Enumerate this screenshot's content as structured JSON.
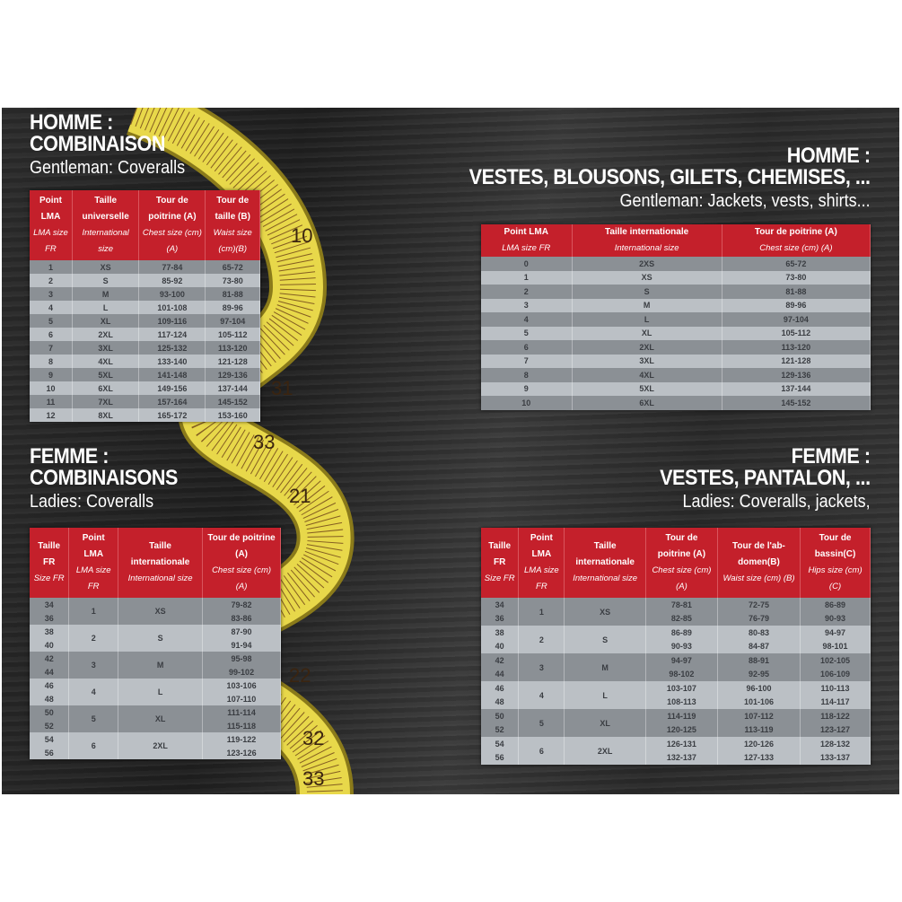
{
  "colors": {
    "header_red": "#c4202b",
    "row_dark": "#8b9095",
    "row_light": "#bbc0c5",
    "background": "#2a2a2a",
    "tape_yellow": "#e8d84a"
  },
  "tape_numbers": [
    "10",
    "31",
    "33",
    "21",
    "22",
    "32",
    "33"
  ],
  "men_coveralls": {
    "title1": "HOMME :",
    "title2": "COMBINAISON",
    "subtitle": "Gentleman: Coveralls",
    "headers": [
      {
        "fr": "Point LMA",
        "en": "LMA size FR"
      },
      {
        "fr": "Taille universelle",
        "en": "International size"
      },
      {
        "fr": "Tour de poitrine (A)",
        "en": "Chest size (cm) (A)"
      },
      {
        "fr": "Tour de taille (B)",
        "en": "Waist size (cm)(B)"
      }
    ],
    "rows": [
      [
        "1",
        "XS",
        "77-84",
        "65-72"
      ],
      [
        "2",
        "S",
        "85-92",
        "73-80"
      ],
      [
        "3",
        "M",
        "93-100",
        "81-88"
      ],
      [
        "4",
        "L",
        "101-108",
        "89-96"
      ],
      [
        "5",
        "XL",
        "109-116",
        "97-104"
      ],
      [
        "6",
        "2XL",
        "117-124",
        "105-112"
      ],
      [
        "7",
        "3XL",
        "125-132",
        "113-120"
      ],
      [
        "8",
        "4XL",
        "133-140",
        "121-128"
      ],
      [
        "9",
        "5XL",
        "141-148",
        "129-136"
      ],
      [
        "10",
        "6XL",
        "149-156",
        "137-144"
      ],
      [
        "11",
        "7XL",
        "157-164",
        "145-152"
      ],
      [
        "12",
        "8XL",
        "165-172",
        "153-160"
      ]
    ]
  },
  "men_jackets": {
    "title1": "HOMME :",
    "title2": "VESTES, BLOUSONS, GILETS, CHEMISES, ...",
    "subtitle": "Gentleman: Jackets, vests, shirts...",
    "headers": [
      {
        "fr": "Point LMA",
        "en": "LMA size FR"
      },
      {
        "fr": "Taille internationale",
        "en": "International size"
      },
      {
        "fr": "Tour de poitrine (A)",
        "en": "Chest size (cm) (A)"
      }
    ],
    "rows": [
      [
        "0",
        "2XS",
        "65-72"
      ],
      [
        "1",
        "XS",
        "73-80"
      ],
      [
        "2",
        "S",
        "81-88"
      ],
      [
        "3",
        "M",
        "89-96"
      ],
      [
        "4",
        "L",
        "97-104"
      ],
      [
        "5",
        "XL",
        "105-112"
      ],
      [
        "6",
        "2XL",
        "113-120"
      ],
      [
        "7",
        "3XL",
        "121-128"
      ],
      [
        "8",
        "4XL",
        "129-136"
      ],
      [
        "9",
        "5XL",
        "137-144"
      ],
      [
        "10",
        "6XL",
        "145-152"
      ]
    ]
  },
  "women_coveralls": {
    "title1": "FEMME :",
    "title2": "COMBINAISONS",
    "subtitle": "Ladies: Coveralls",
    "headers": [
      {
        "fr": "Taille FR",
        "en": "Size FR"
      },
      {
        "fr": "Point LMA",
        "en": "LMA size FR"
      },
      {
        "fr": "Taille internationale",
        "en": "International size"
      },
      {
        "fr": "Tour de poitrine (A)",
        "en": "Chest size (cm) (A)"
      }
    ],
    "groups": [
      {
        "sizes": [
          "34",
          "36"
        ],
        "lma": "1",
        "intl": "XS",
        "chest": [
          "79-82",
          "83-86"
        ]
      },
      {
        "sizes": [
          "38",
          "40"
        ],
        "lma": "2",
        "intl": "S",
        "chest": [
          "87-90",
          "91-94"
        ]
      },
      {
        "sizes": [
          "42",
          "44"
        ],
        "lma": "3",
        "intl": "M",
        "chest": [
          "95-98",
          "99-102"
        ]
      },
      {
        "sizes": [
          "46",
          "48"
        ],
        "lma": "4",
        "intl": "L",
        "chest": [
          "103-106",
          "107-110"
        ]
      },
      {
        "sizes": [
          "50",
          "52"
        ],
        "lma": "5",
        "intl": "XL",
        "chest": [
          "111-114",
          "115-118"
        ]
      },
      {
        "sizes": [
          "54",
          "56"
        ],
        "lma": "6",
        "intl": "2XL",
        "chest": [
          "119-122",
          "123-126"
        ]
      }
    ]
  },
  "women_jackets": {
    "title1": "FEMME :",
    "title2": "VESTES, PANTALON, ...",
    "subtitle": "Ladies: Coveralls, jackets,",
    "headers": [
      {
        "fr": "Taille FR",
        "en": "Size FR"
      },
      {
        "fr": "Point LMA",
        "en": "LMA size FR"
      },
      {
        "fr": "Taille internationale",
        "en": "International size"
      },
      {
        "fr": "Tour de poitrine (A)",
        "en": "Chest size (cm) (A)"
      },
      {
        "fr": "Tour de l'ab-domen(B)",
        "en": "Waist size (cm) (B)"
      },
      {
        "fr": "Tour de bassin(C)",
        "en": "Hips size (cm) (C)"
      }
    ],
    "groups": [
      {
        "sizes": [
          "34",
          "36"
        ],
        "lma": "1",
        "intl": "XS",
        "chest": [
          "78-81",
          "82-85"
        ],
        "waist": [
          "72-75",
          "76-79"
        ],
        "hips": [
          "86-89",
          "90-93"
        ]
      },
      {
        "sizes": [
          "38",
          "40"
        ],
        "lma": "2",
        "intl": "S",
        "chest": [
          "86-89",
          "90-93"
        ],
        "waist": [
          "80-83",
          "84-87"
        ],
        "hips": [
          "94-97",
          "98-101"
        ]
      },
      {
        "sizes": [
          "42",
          "44"
        ],
        "lma": "3",
        "intl": "M",
        "chest": [
          "94-97",
          "98-102"
        ],
        "waist": [
          "88-91",
          "92-95"
        ],
        "hips": [
          "102-105",
          "106-109"
        ]
      },
      {
        "sizes": [
          "46",
          "48"
        ],
        "lma": "4",
        "intl": "L",
        "chest": [
          "103-107",
          "108-113"
        ],
        "waist": [
          "96-100",
          "101-106"
        ],
        "hips": [
          "110-113",
          "114-117"
        ]
      },
      {
        "sizes": [
          "50",
          "52"
        ],
        "lma": "5",
        "intl": "XL",
        "chest": [
          "114-119",
          "120-125"
        ],
        "waist": [
          "107-112",
          "113-119"
        ],
        "hips": [
          "118-122",
          "123-127"
        ]
      },
      {
        "sizes": [
          "54",
          "56"
        ],
        "lma": "6",
        "intl": "2XL",
        "chest": [
          "126-131",
          "132-137"
        ],
        "waist": [
          "120-126",
          "127-133"
        ],
        "hips": [
          "128-132",
          "133-137"
        ]
      }
    ]
  }
}
